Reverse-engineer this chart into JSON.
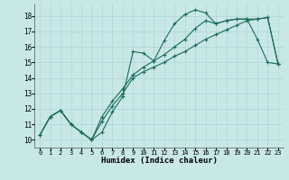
{
  "bg_color": "#c8e8e8",
  "line_color": "#1a6b5a",
  "grid_color": "#b0d4d4",
  "xlabel": "Humidex (Indice chaleur)",
  "xlim": [
    -0.5,
    23.5
  ],
  "ylim": [
    9.5,
    18.8
  ],
  "yticks": [
    10,
    11,
    12,
    13,
    14,
    15,
    16,
    17,
    18
  ],
  "xticks": [
    0,
    1,
    2,
    3,
    4,
    5,
    6,
    7,
    8,
    9,
    10,
    11,
    12,
    13,
    14,
    15,
    16,
    17,
    18,
    19,
    20,
    21,
    22,
    23
  ],
  "line1_x": [
    0,
    1,
    2,
    3,
    4,
    5,
    6,
    7,
    8,
    9,
    10,
    11,
    12,
    13,
    14,
    15,
    16,
    17,
    18,
    19,
    20,
    21,
    22,
    23
  ],
  "line1_y": [
    10.3,
    11.5,
    11.9,
    11.0,
    10.5,
    10.0,
    10.5,
    11.8,
    12.8,
    15.7,
    15.6,
    15.1,
    16.4,
    17.5,
    18.1,
    18.4,
    18.2,
    17.5,
    17.7,
    17.8,
    17.8,
    16.5,
    15.0,
    14.9
  ],
  "line2_x": [
    0,
    1,
    2,
    3,
    4,
    5,
    6,
    7,
    8,
    9,
    10,
    11,
    12,
    13,
    14,
    15,
    16,
    17,
    18,
    19,
    20,
    21,
    22,
    23
  ],
  "line2_y": [
    10.3,
    11.5,
    11.9,
    11.0,
    10.5,
    10.0,
    11.2,
    12.2,
    13.0,
    14.0,
    14.4,
    14.7,
    15.0,
    15.4,
    15.7,
    16.1,
    16.5,
    16.8,
    17.1,
    17.4,
    17.7,
    17.8,
    17.9,
    14.9
  ],
  "line3_x": [
    0,
    1,
    2,
    3,
    4,
    5,
    6,
    7,
    8,
    9,
    10,
    11,
    12,
    13,
    14,
    15,
    16,
    17,
    18,
    19,
    20,
    21,
    22,
    23
  ],
  "line3_y": [
    10.3,
    11.5,
    11.9,
    11.0,
    10.5,
    10.0,
    11.5,
    12.5,
    13.3,
    14.2,
    14.7,
    15.1,
    15.5,
    16.0,
    16.5,
    17.2,
    17.7,
    17.5,
    17.7,
    17.8,
    17.8,
    17.8,
    17.9,
    14.9
  ]
}
